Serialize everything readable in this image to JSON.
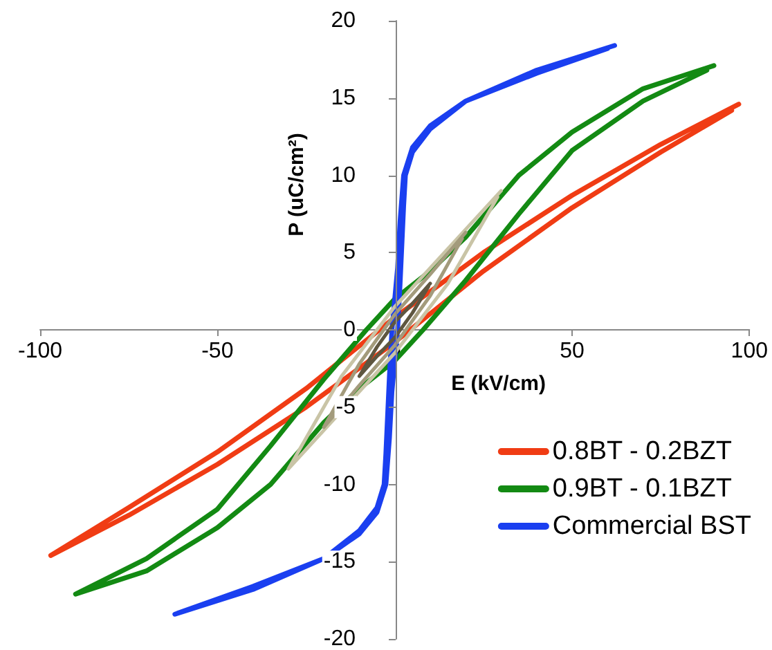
{
  "chart_data": {
    "type": "line",
    "xlabel": "E (kV/cm)",
    "ylabel": "P (uC/cm²)",
    "xlim": [
      -100,
      100
    ],
    "xticks": [
      -100,
      -50,
      0,
      50,
      100
    ],
    "ylim": [
      -20,
      20
    ],
    "yticks": [
      -20,
      -15,
      -10,
      -5,
      0,
      5,
      10,
      15,
      20
    ],
    "grid": false,
    "legend": "bottom right",
    "marker": "none",
    "line_style": "solid",
    "series": [
      {
        "name": "0.8BT - 0.2BZT",
        "color": "#f03c14",
        "x": [
          97,
          75,
          50,
          25,
          0,
          -25,
          -50,
          -75,
          -97,
          -75,
          -50,
          -25,
          0,
          25,
          50,
          75,
          95
        ],
        "values": [
          14.6,
          12.0,
          8.7,
          5.0,
          0.8,
          -3.8,
          -7.9,
          -11.5,
          -14.6,
          -12.0,
          -8.7,
          -5.0,
          -0.8,
          3.8,
          7.9,
          11.5,
          14.2
        ]
      },
      {
        "name": "0.9BT - 0.1BZT",
        "color": "#138a13",
        "x": [
          90,
          70,
          50,
          35,
          20,
          10,
          0,
          -8,
          -20,
          -35,
          -50,
          -70,
          -90,
          -70,
          -50,
          -35,
          -20,
          -10,
          0,
          8,
          20,
          35,
          50,
          70,
          88
        ],
        "values": [
          17.1,
          15.6,
          12.8,
          10.0,
          6.0,
          3.8,
          2.0,
          0,
          -3.2,
          -7.5,
          -11.6,
          -14.8,
          -17.1,
          -15.6,
          -12.8,
          -10.0,
          -6.0,
          -3.8,
          -2.0,
          0,
          3.2,
          7.5,
          11.6,
          14.8,
          16.8
        ]
      },
      {
        "name": "Commercial BST",
        "color": "#1a3ff0",
        "x": [
          62,
          40,
          20,
          10,
          5,
          2.5,
          1.5,
          0.8,
          0,
          -0.8,
          -1.5,
          -2.5,
          -3,
          -5,
          -10,
          -20,
          -40,
          -62,
          -40,
          -20,
          -10,
          -5,
          -2.5,
          -1.5,
          -0.8,
          0,
          0.8,
          1.5,
          2.5,
          3,
          5,
          10,
          20,
          40,
          60
        ],
        "values": [
          18.4,
          16.8,
          14.8,
          13.2,
          11.8,
          10,
          7,
          4,
          2,
          0,
          -3,
          -8,
          -10,
          -11.5,
          -13,
          -14.8,
          -16.6,
          -18.4,
          -16.8,
          -14.8,
          -13.2,
          -11.8,
          -10,
          -7,
          -4,
          -2,
          0,
          3,
          8,
          10,
          11.5,
          13,
          14.8,
          16.6,
          18.2
        ]
      },
      {
        "color": "#c9c4a6",
        "x": [
          30,
          18,
          0,
          -15,
          -30,
          -18,
          0,
          15,
          29
        ],
        "values": [
          9.0,
          6.0,
          1.5,
          -3.0,
          -9.0,
          -6.0,
          -1.5,
          3.0,
          8.6
        ]
      },
      {
        "color": "#a39b7c",
        "x": [
          20,
          10,
          0,
          -10,
          -20,
          -10,
          0,
          10,
          19
        ],
        "values": [
          6.3,
          3.6,
          1.0,
          -2.2,
          -6.3,
          -3.6,
          -1.0,
          2.2,
          5.9
        ]
      },
      {
        "color": "#5e5640",
        "x": [
          10,
          5,
          0,
          -5,
          -10,
          -5,
          0,
          5,
          9.5
        ],
        "values": [
          3.0,
          1.7,
          0.5,
          -1.1,
          -3.0,
          -1.7,
          -0.5,
          1.1,
          2.8
        ]
      }
    ]
  }
}
